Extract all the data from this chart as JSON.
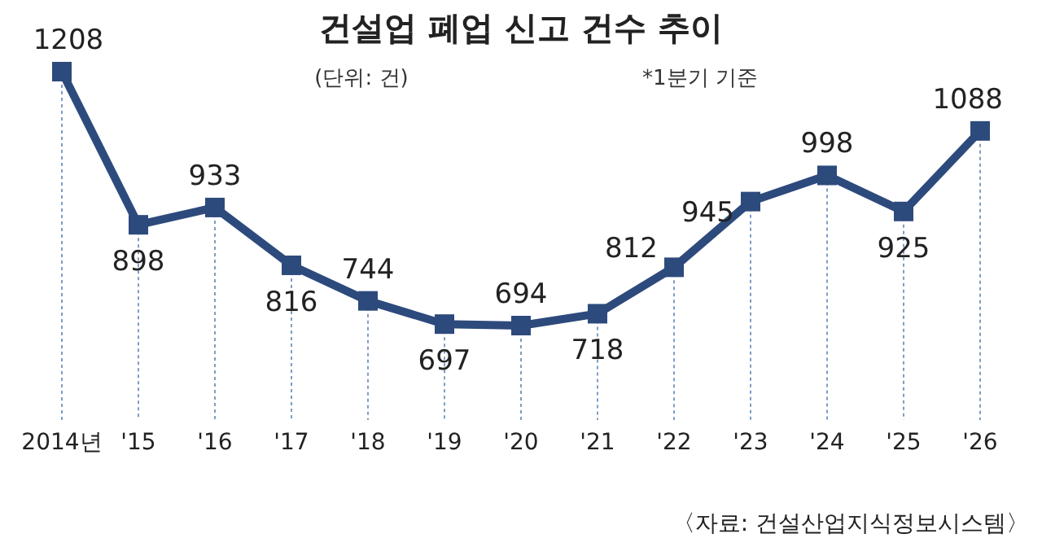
{
  "chart_data": {
    "type": "line",
    "title": "건설업 폐업 신고 건수 추이",
    "subtitle": "(단위: 건)",
    "annotations": [
      "*1분기 기준",
      "〈자료: 건설산업지식정보시스템〉"
    ],
    "categories": [
      "2014년",
      "'15",
      "'16",
      "'17",
      "'18",
      "'19",
      "'20",
      "'21",
      "'22",
      "'23",
      "'24",
      "'25",
      "'26"
    ],
    "values": [
      1208,
      898,
      933,
      816,
      744,
      697,
      694,
      718,
      812,
      945,
      998,
      925,
      1088
    ],
    "color": "#2d4a7c",
    "marker": "square",
    "data_labels": true,
    "grid": "x"
  }
}
